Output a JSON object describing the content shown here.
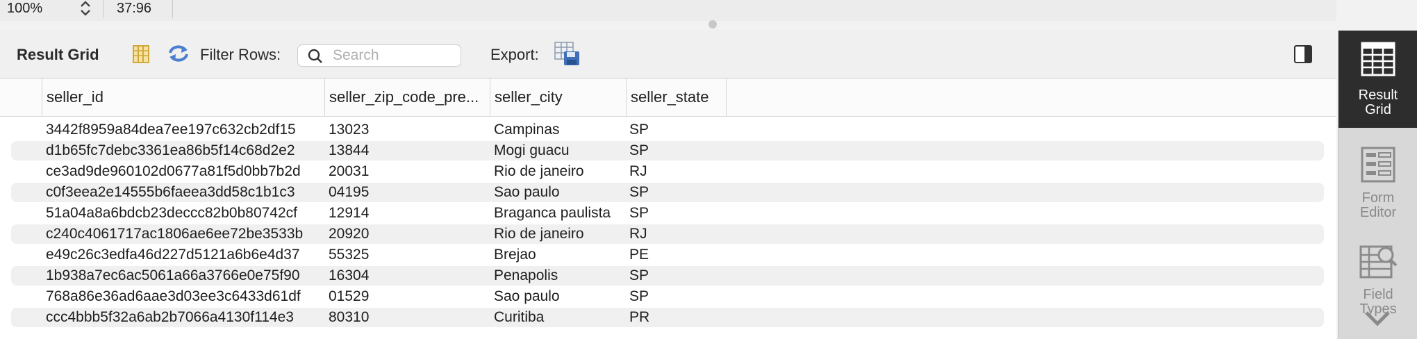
{
  "status_bar": {
    "zoom": "100%",
    "cursor_position": "37:96"
  },
  "toolbar": {
    "result_grid_label": "Result Grid",
    "filter_label": "Filter Rows:",
    "search_placeholder": "Search",
    "export_label": "Export:"
  },
  "grid": {
    "columns": [
      "seller_id",
      "seller_zip_code_pre...",
      "seller_city",
      "seller_state"
    ],
    "rows": [
      [
        "3442f8959a84dea7ee197c632cb2df15",
        "13023",
        "Campinas",
        "SP"
      ],
      [
        "d1b65fc7debc3361ea86b5f14c68d2e2",
        "13844",
        "Mogi guacu",
        "SP"
      ],
      [
        "ce3ad9de960102d0677a81f5d0bb7b2d",
        "20031",
        "Rio de janeiro",
        "RJ"
      ],
      [
        "c0f3eea2e14555b6faeea3dd58c1b1c3",
        "04195",
        "Sao paulo",
        "SP"
      ],
      [
        "51a04a8a6bdcb23deccc82b0b80742cf",
        "12914",
        "Braganca paulista",
        "SP"
      ],
      [
        "c240c4061717ac1806ae6ee72be3533b",
        "20920",
        "Rio de janeiro",
        "RJ"
      ],
      [
        "e49c26c3edfa46d227d5121a6b6e4d37",
        "55325",
        "Brejao",
        "PE"
      ],
      [
        "1b938a7ec6ac5061a66a3766e0e75f90",
        "16304",
        "Penapolis",
        "SP"
      ],
      [
        "768a86e36ad6aae3d03ee3c6433d61df",
        "01529",
        "Sao paulo",
        "SP"
      ],
      [
        "ccc4bbb5f32a6ab2b7066a4130f114e3",
        "80310",
        "Curitiba",
        "PR"
      ]
    ]
  },
  "right_panel": {
    "buttons": [
      {
        "label": "Result Grid",
        "icon": "result-grid-icon",
        "active": true
      },
      {
        "label": "Form Editor",
        "icon": "form-editor-icon",
        "active": false
      },
      {
        "label": "Field Types",
        "icon": "field-types-icon",
        "active": false
      }
    ],
    "scroll_icon": "chevron-down-icon"
  },
  "colors": {
    "active_panel_bg": "#2d2d2d",
    "icon_blue": "#4a7fd0",
    "icon_yellow": "#e8b84a"
  }
}
